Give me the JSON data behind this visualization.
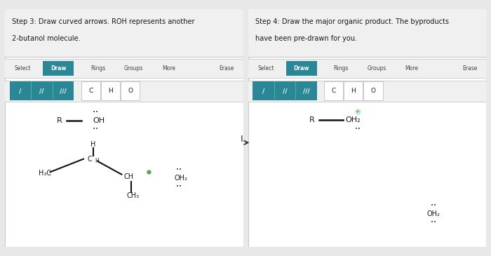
{
  "bg_color": "#e8e8e8",
  "white": "#ffffff",
  "panel_bg": "#f7f7f7",
  "teal": "#2a8896",
  "teal_light": "#3a9aa6",
  "border_color": "#c8c8c8",
  "text_dark": "#1a1a1a",
  "text_mid": "#444444",
  "green_plus": "#4a8a4a",
  "left_title_line1": "Step 3: Draw curved arrows. ROH represents another",
  "left_title_line2": "2-butanol molecule.",
  "right_title_line1": "Step 4: Draw the major organic product. The byproducts",
  "right_title_line2": "have been pre-drawn for you.",
  "toolbar_labels": [
    "Select",
    "Draw",
    "Rings",
    "Groups",
    "More",
    "Erase"
  ]
}
